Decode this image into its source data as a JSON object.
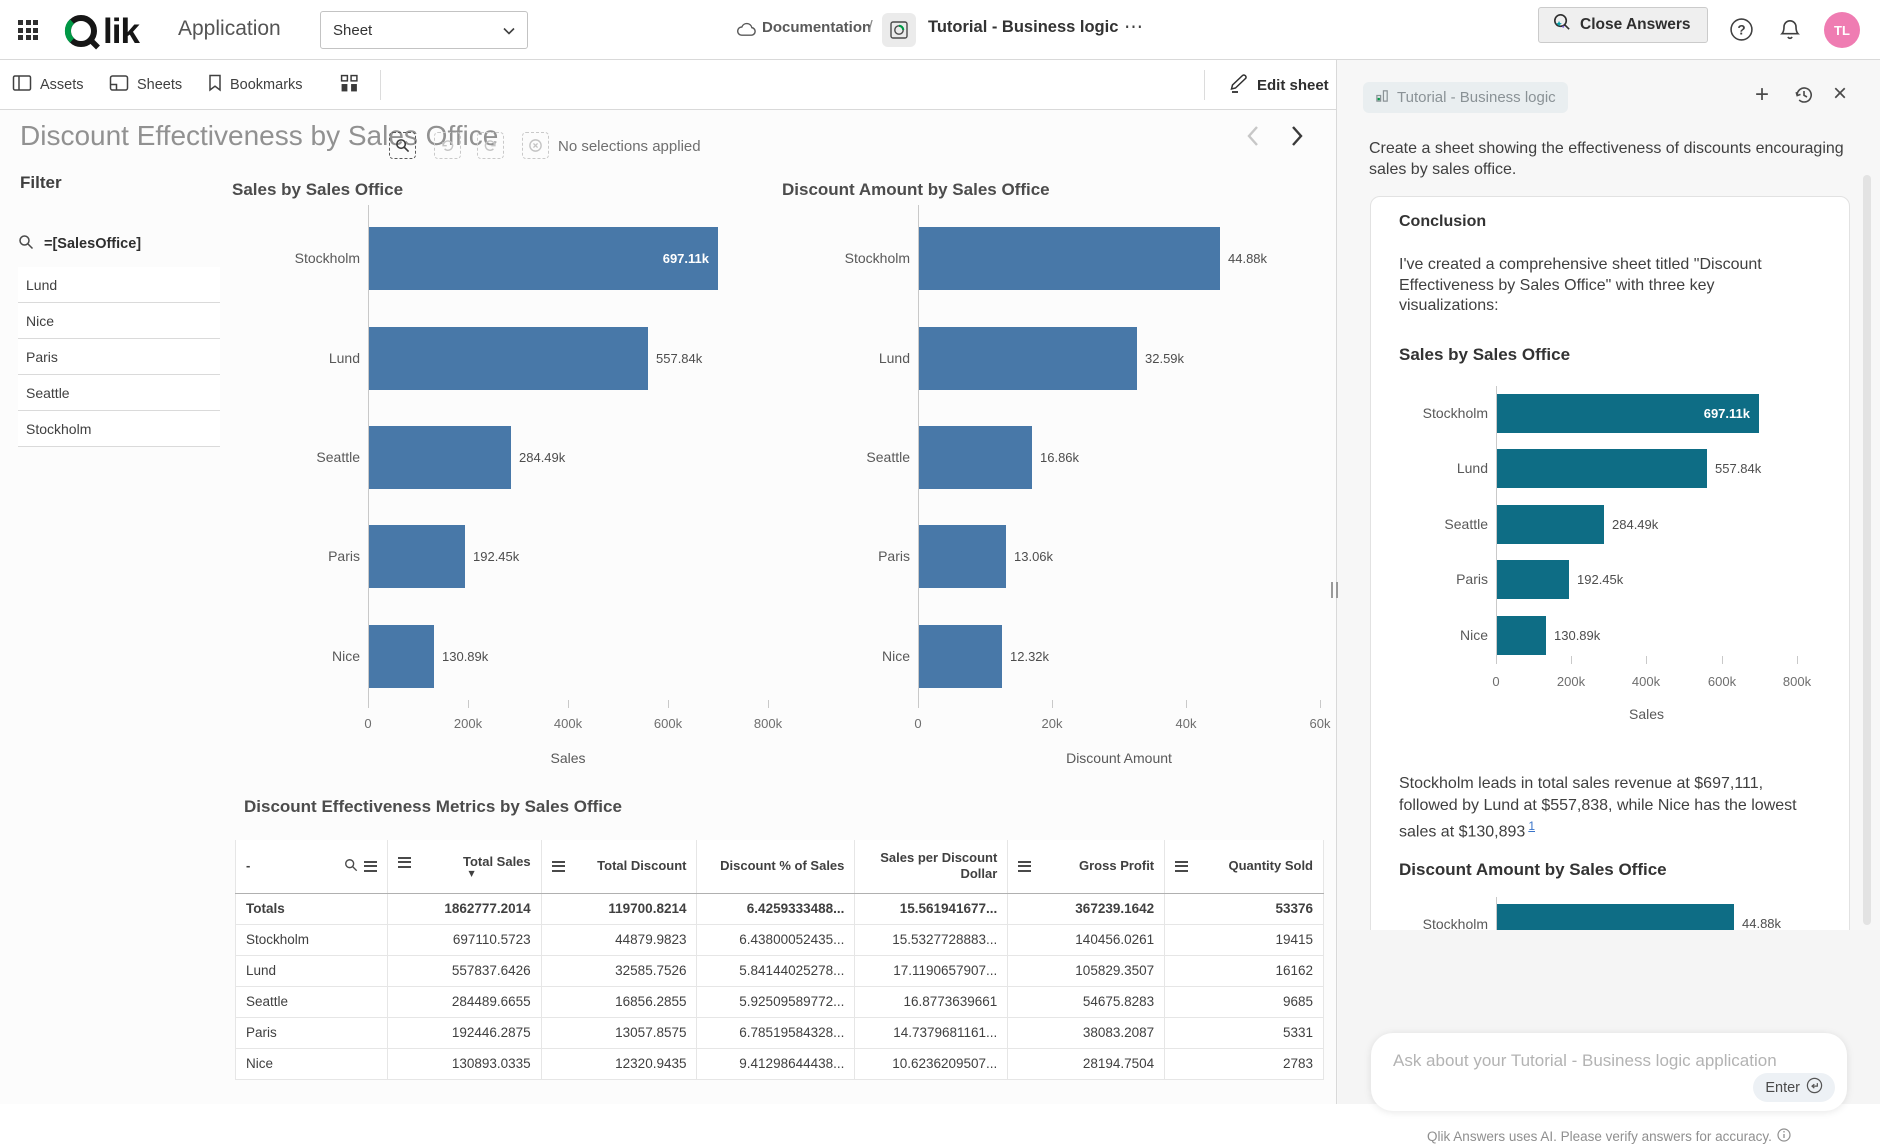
{
  "navbar": {
    "app_label": "Application",
    "sheet_selector": "Sheet",
    "breadcrumb": {
      "documentation": "Documentation",
      "separator": "/",
      "app_title": "Tutorial - Business logic",
      "more": "⋯"
    },
    "close_answers_label": "Close Answers",
    "avatar_initials": "TL",
    "colors": {
      "qlik_green": "#009845",
      "avatar_pink": "#ef7cb2"
    }
  },
  "toolbar": {
    "assets_label": "Assets",
    "sheets_label": "Sheets",
    "bookmarks_label": "Bookmarks",
    "selection_status": "No selections applied",
    "edit_sheet_label": "Edit sheet"
  },
  "sheet": {
    "title": "Discount Effectiveness by Sales Office",
    "filter": {
      "heading": "Filter",
      "search_expression": "=[SalesOffice]",
      "values": [
        "Lund",
        "Nice",
        "Paris",
        "Seattle",
        "Stockholm"
      ]
    }
  },
  "chart_data": [
    {
      "id": "sales-by-sales-office",
      "type": "bar",
      "orientation": "horizontal",
      "title": "Sales by Sales Office",
      "categories": [
        "Stockholm",
        "Lund",
        "Seattle",
        "Paris",
        "Nice"
      ],
      "values": [
        697110.5723,
        557837.6426,
        284489.6655,
        192446.2875,
        130893.0335
      ],
      "value_labels": [
        "697.11k",
        "557.84k",
        "284.49k",
        "192.45k",
        "130.89k"
      ],
      "xlabel": "Sales",
      "xlim": [
        0,
        800000
      ],
      "xtick_values": [
        0,
        200000,
        400000,
        600000,
        800000
      ],
      "xtick_labels": [
        "0",
        "200k",
        "400k",
        "600k",
        "800k"
      ],
      "bar_color": "#4878a8",
      "grid": false,
      "legend": "none"
    },
    {
      "id": "discount-amount-by-sales-office",
      "type": "bar",
      "orientation": "horizontal",
      "title": "Discount Amount by Sales Office",
      "categories": [
        "Stockholm",
        "Lund",
        "Seattle",
        "Paris",
        "Nice"
      ],
      "values": [
        44879.9823,
        32585.7526,
        16856.2855,
        13057.8575,
        12320.9435
      ],
      "value_labels": [
        "44.88k",
        "32.59k",
        "16.86k",
        "13.06k",
        "12.32k"
      ],
      "xlabel": "Discount Amount",
      "xlim": [
        0,
        60000
      ],
      "xtick_values": [
        0,
        20000,
        40000,
        60000
      ],
      "xtick_labels": [
        "0",
        "20k",
        "40k",
        "60k"
      ],
      "bar_color": "#4878a8",
      "grid": false,
      "legend": "none"
    },
    {
      "id": "discount-effectiveness-metrics",
      "type": "table",
      "title": "Discount Effectiveness Metrics by Sales Office",
      "columns": [
        {
          "label": "-",
          "search_icon": true,
          "menu_icon": true
        },
        {
          "label": "Total Sales",
          "menu_icon": true,
          "sorted_desc": true
        },
        {
          "label": "Total Discount",
          "menu_icon": true
        },
        {
          "label": "Discount % of Sales"
        },
        {
          "label": "Sales per Discount Dollar"
        },
        {
          "label": "Gross Profit",
          "menu_icon": true
        },
        {
          "label": "Quantity Sold",
          "menu_icon": true
        }
      ],
      "rows": [
        [
          "Totals",
          "1862777.2014",
          "119700.8214",
          "6.4259333488...",
          "15.561941677...",
          "367239.1642",
          "53376"
        ],
        [
          "Stockholm",
          "697110.5723",
          "44879.9823",
          "6.43800052435...",
          "15.5327728883...",
          "140456.0261",
          "19415"
        ],
        [
          "Lund",
          "557837.6426",
          "32585.7526",
          "5.84144025278...",
          "17.1190657907...",
          "105829.3507",
          "16162"
        ],
        [
          "Seattle",
          "284489.6655",
          "16856.2855",
          "5.92509589772...",
          "16.8773639661",
          "54675.8283",
          "9685"
        ],
        [
          "Paris",
          "192446.2875",
          "13057.8575",
          "6.78519584328...",
          "14.7379681161...",
          "38083.2087",
          "5331"
        ],
        [
          "Nice",
          "130893.0335",
          "12320.9435",
          "9.41298644438...",
          "10.6236209507...",
          "28194.7504",
          "2783"
        ]
      ]
    },
    {
      "id": "answers-mini-sales",
      "type": "bar",
      "orientation": "horizontal",
      "title": "Sales by Sales Office",
      "categories": [
        "Stockholm",
        "Lund",
        "Seattle",
        "Paris",
        "Nice"
      ],
      "values": [
        697110.5723,
        557837.6426,
        284489.6655,
        192446.2875,
        130893.0335
      ],
      "value_labels": [
        "697.11k",
        "557.84k",
        "284.49k",
        "192.45k",
        "130.89k"
      ],
      "xlabel": "Sales",
      "xlim": [
        0,
        800000
      ],
      "xtick_values": [
        0,
        200000,
        400000,
        600000,
        800000
      ],
      "xtick_labels": [
        "0",
        "200k",
        "400k",
        "600k",
        "800k"
      ],
      "bar_color": "#0e6d85",
      "grid": false,
      "legend": "none"
    },
    {
      "id": "answers-mini-discount-partial",
      "type": "bar",
      "orientation": "horizontal",
      "title": "Discount Amount by Sales Office",
      "categories": [
        "Stockholm"
      ],
      "values": [
        44879.9823
      ],
      "value_labels": [
        "44.88k"
      ],
      "xlabel": "",
      "xlim": [
        0,
        60000
      ],
      "xtick_values": [],
      "xtick_labels": [],
      "bar_color": "#0e6d85",
      "grid": false,
      "legend": "none"
    }
  ],
  "answers_panel": {
    "app_tag": "Tutorial - Business logic",
    "prompt": "Create a sheet showing the effectiveness of discounts encouraging\nsales by sales office.",
    "conclusion": {
      "heading": "Conclusion",
      "intro": "I've created a comprehensive sheet titled \"Discount\nEffectiveness by Sales Office\" with three key\nvisualizations:",
      "insight": "Stockholm leads in total sales revenue at $697,111,\nfollowed by Lund at $557,838, while Nice has the lowest\nsales at $130,893",
      "citation": "1"
    },
    "input_placeholder": "Ask about your Tutorial - Business logic application",
    "enter_label": "Enter",
    "disclaimer": "Qlik Answers uses AI. Please verify answers for accuracy."
  }
}
